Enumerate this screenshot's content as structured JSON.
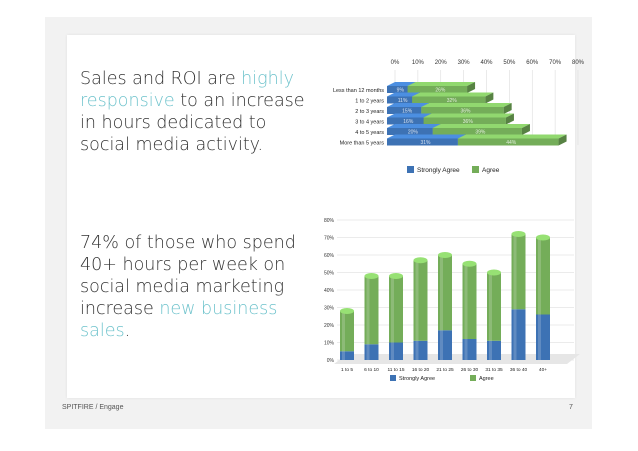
{
  "slide": {
    "text1": {
      "part1": "Sales and ROI are ",
      "highlight": "highly responsive",
      "part2": " to an increase in hours dedicated to social media activity."
    },
    "text2": {
      "part1": "74% of those who spend 40+ hours per week on social media marketing increase ",
      "highlight": "new business sales",
      "part2": "."
    },
    "footer_left": "SPITFIRE / Engage",
    "page_number": "7",
    "colors": {
      "highlight": "#6fc3cc",
      "strongly_agree": "#3d72b4",
      "agree": "#74ad59"
    }
  },
  "chart_data": [
    {
      "type": "bar",
      "orientation": "horizontal",
      "stacked": true,
      "categories": [
        "Less than 12 months",
        "1 to 2 years",
        "2 to 3 years",
        "3 to 4 years",
        "4 to 5 years",
        "More than 5 years"
      ],
      "series": [
        {
          "name": "Strongly Agree",
          "values": [
            9,
            11,
            15,
            16,
            20,
            31
          ],
          "labels": [
            "9%",
            "11%",
            "15%",
            "16%",
            "20%",
            "31%"
          ]
        },
        {
          "name": "Agree",
          "values": [
            26,
            32,
            36,
            36,
            39,
            44
          ],
          "labels": [
            "26%",
            "32%",
            "36%",
            "36%",
            "39%",
            "44%"
          ]
        }
      ],
      "xticks": [
        "0%",
        "10%",
        "20%",
        "30%",
        "40%",
        "50%",
        "60%",
        "70%",
        "80%"
      ],
      "xlim": [
        0,
        80
      ],
      "legend": "bottom"
    },
    {
      "type": "bar",
      "stacked": true,
      "categories": [
        "1 to 5",
        "6 to 10",
        "11 to 15",
        "16 to 20",
        "21 to 25",
        "26 to 30",
        "31 to 35",
        "36 to 40",
        "40+"
      ],
      "series": [
        {
          "name": "Strongly Agree",
          "values": [
            5,
            9,
            10,
            11,
            17,
            12,
            11,
            29,
            26
          ]
        },
        {
          "name": "Agree",
          "values": [
            23,
            39,
            38,
            46,
            43,
            43,
            39,
            43,
            44
          ]
        }
      ],
      "yticks": [
        "0%",
        "10%",
        "20%",
        "30%",
        "40%",
        "50%",
        "60%",
        "70%",
        "80%"
      ],
      "ylim": [
        0,
        80
      ],
      "legend": "bottom"
    }
  ]
}
